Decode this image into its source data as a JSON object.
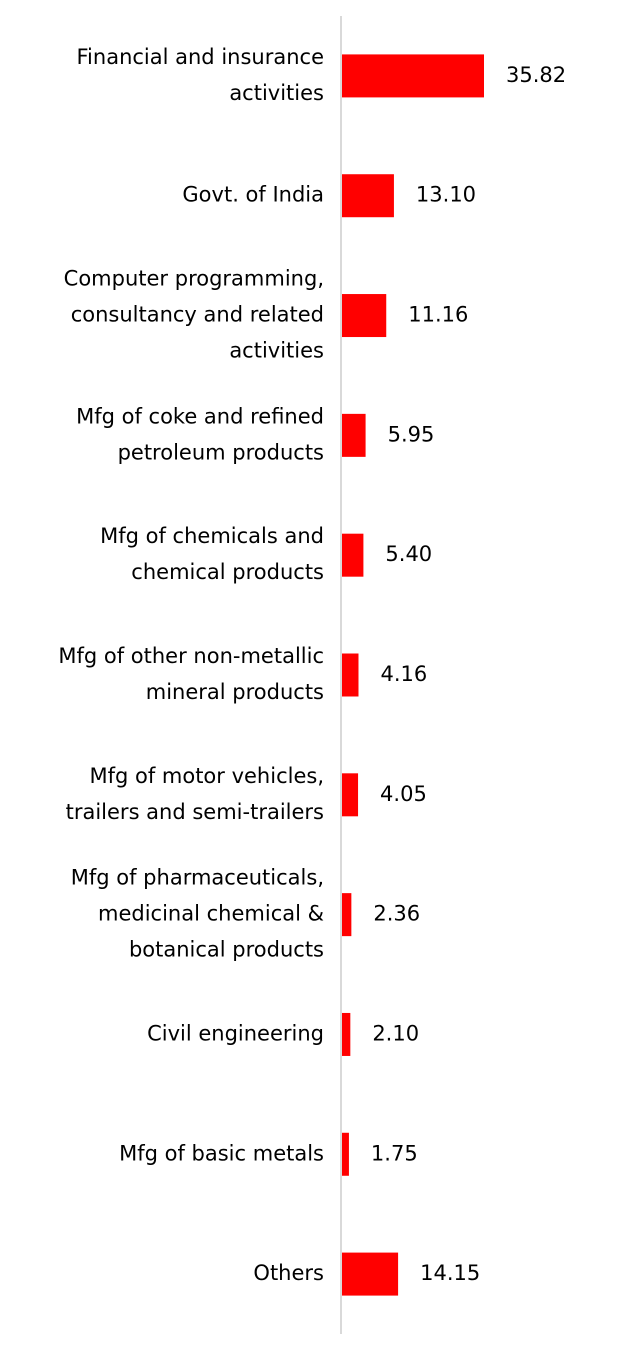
{
  "chart_data": {
    "type": "bar",
    "orientation": "horizontal",
    "categories": [
      "Financial and insurance activities",
      "Govt. of India",
      "Computer programming, consultancy and related activities",
      "Mfg of coke and refined petroleum products",
      "Mfg of chemicals and chemical products",
      "Mfg of other non-metallic mineral products",
      "Mfg of motor vehicles, trailers and semi-trailers",
      "Mfg of pharmaceuticals, medicinal chemical & botanical products",
      "Civil engineering",
      "Mfg of basic metals",
      "Others"
    ],
    "category_lines": [
      [
        "Financial and insurance",
        "activities"
      ],
      [
        "Govt. of India"
      ],
      [
        "Computer programming,",
        "consultancy and related",
        "activities"
      ],
      [
        "Mfg of coke and refined",
        "petroleum products"
      ],
      [
        "Mfg of chemicals and",
        "chemical products"
      ],
      [
        "Mfg of other non-metallic",
        "mineral products"
      ],
      [
        "Mfg of motor vehicles,",
        "trailers and semi-trailers"
      ],
      [
        "Mfg of pharmaceuticals,",
        "medicinal chemical &",
        "botanical products"
      ],
      [
        "Civil engineering"
      ],
      [
        "Mfg of basic metals"
      ],
      [
        "Others"
      ]
    ],
    "values": [
      35.82,
      13.1,
      11.16,
      5.95,
      5.4,
      4.16,
      4.05,
      2.36,
      2.1,
      1.75,
      14.15
    ],
    "value_labels": [
      "35.82",
      "13.10",
      "11.16",
      "5.95",
      "5.40",
      "4.16",
      "4.05",
      "2.36",
      "2.10",
      "1.75",
      "14.15"
    ],
    "title": "",
    "xlabel": "",
    "ylabel": "",
    "grid": false,
    "legend": "none",
    "colors": {
      "bar": "#FF0000",
      "axis": "#D9D9D9",
      "text": "#000000"
    }
  }
}
